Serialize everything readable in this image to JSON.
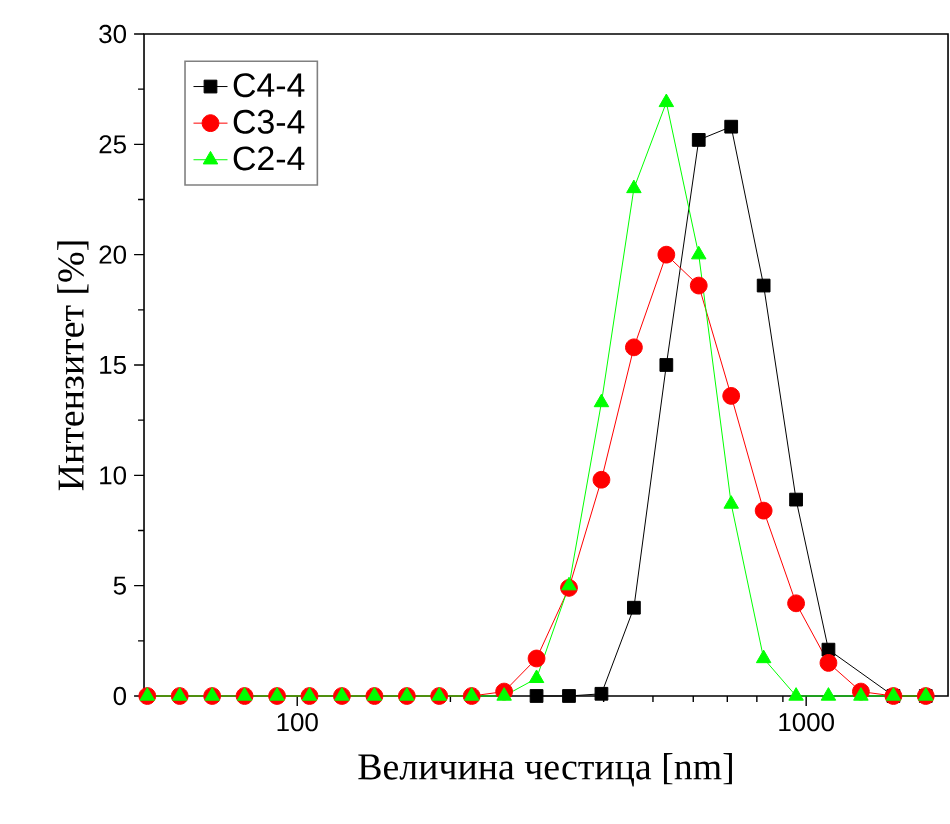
{
  "chart_data": {
    "type": "line",
    "xlabel": "Величина честица [nm]",
    "ylabel": "Интензитет [%]",
    "x": [
      50.75,
      58.77,
      68.06,
      78.82,
      91.28,
      105.7,
      122.4,
      141.8,
      164.2,
      190.1,
      220.2,
      255,
      295.3,
      342,
      396.1,
      458.7,
      531.2,
      615.1,
      712.4,
      825,
      955.4,
      1106,
      1281,
      1484,
      1718
    ],
    "series": [
      {
        "name": "C4-4",
        "color": "#000000",
        "marker": "square",
        "values": [
          null,
          null,
          null,
          null,
          null,
          null,
          null,
          null,
          null,
          null,
          null,
          null,
          0,
          0,
          0.1,
          4.0,
          15.0,
          25.2,
          25.8,
          18.6,
          8.9,
          2.1,
          null,
          0,
          0
        ]
      },
      {
        "name": "C3-4",
        "color": "#ff0000",
        "marker": "circle",
        "values": [
          0,
          0,
          0,
          0,
          0,
          0,
          0,
          0,
          0,
          0,
          0,
          0.2,
          1.7,
          4.9,
          9.8,
          15.8,
          20.0,
          18.6,
          13.6,
          8.4,
          4.2,
          1.5,
          0.2,
          0,
          0
        ]
      },
      {
        "name": "C2-4",
        "color": "#00ff00",
        "marker": "triangle",
        "values": [
          0,
          0,
          0,
          0,
          0,
          0,
          0,
          0,
          0,
          0,
          0,
          0,
          0.8,
          5.0,
          13.3,
          23.0,
          26.9,
          20.0,
          8.7,
          1.7,
          0,
          0,
          0,
          0,
          0
        ]
      }
    ],
    "log": "x",
    "xlim": [
      50,
      1900
    ],
    "xticks": [
      100,
      1000
    ],
    "ylim": [
      0,
      30
    ],
    "yticks": [
      0,
      5,
      10,
      15,
      20,
      25,
      30
    ],
    "legend": "top left",
    "line_style": "solid"
  }
}
